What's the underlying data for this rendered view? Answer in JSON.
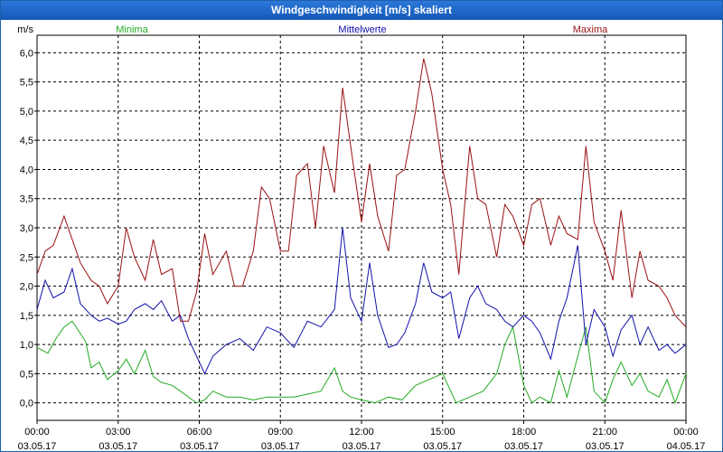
{
  "window": {
    "title": "Windgeschwindigkeit [m/s] skaliert"
  },
  "colors": {
    "min": "#22aa22",
    "mean": "#1111aa",
    "max": "#991111",
    "grid": "#000000"
  },
  "chart_data": {
    "type": "line",
    "title": "Windgeschwindigkeit [m/s] skaliert",
    "ylabel": "m/s",
    "ylim": [
      -0.3,
      6.3
    ],
    "yticks": [
      0,
      0.5,
      1,
      1.5,
      2,
      2.5,
      3,
      3.5,
      4,
      4.5,
      5,
      5.5,
      6
    ],
    "ytick_labels": [
      "0,0",
      "0,5",
      "1,0",
      "1,5",
      "2,0",
      "2,5",
      "3,0",
      "3,5",
      "4,0",
      "4,5",
      "5,0",
      "5,5",
      "6,0"
    ],
    "xlim": [
      0,
      24
    ],
    "xticks": [
      0,
      3,
      6,
      9,
      12,
      15,
      18,
      21,
      24
    ],
    "xtick_time_labels": [
      "00:00",
      "03:00",
      "06:00",
      "09:00",
      "12:00",
      "15:00",
      "18:00",
      "21:00",
      "00:00"
    ],
    "xtick_date_labels": [
      "03.05.17",
      "03.05.17",
      "03.05.17",
      "03.05.17",
      "03.05.17",
      "03.05.17",
      "03.05.17",
      "03.05.17",
      "04.05.17"
    ],
    "series": [
      {
        "name": "Minima",
        "key": "min",
        "x": [
          0,
          0.4,
          0.7,
          1,
          1.3,
          1.8,
          2,
          2.3,
          2.6,
          3,
          3.3,
          3.6,
          4,
          4.3,
          4.6,
          5,
          5.3,
          5.6,
          5.9,
          6.2,
          6.5,
          7,
          7.5,
          8,
          8.5,
          9,
          9.5,
          10,
          10.5,
          11,
          11.3,
          11.6,
          12,
          12.5,
          13,
          13.5,
          14,
          14.5,
          15,
          15.5,
          16,
          16.5,
          17,
          17.3,
          17.6,
          18,
          18.3,
          18.6,
          19,
          19.3,
          19.6,
          20,
          20.3,
          20.6,
          21,
          21.3,
          21.6,
          22,
          22.3,
          22.6,
          23,
          23.3,
          23.6,
          24
        ],
        "values": [
          0.95,
          0.85,
          1.1,
          1.3,
          1.4,
          1.05,
          0.6,
          0.7,
          0.4,
          0.55,
          0.75,
          0.5,
          0.9,
          0.45,
          0.35,
          0.3,
          0.2,
          0.1,
          0.0,
          0.05,
          0.2,
          0.1,
          0.1,
          0.05,
          0.1,
          0.1,
          0.1,
          0.15,
          0.2,
          0.6,
          0.2,
          0.1,
          0.05,
          0.0,
          0.1,
          0.05,
          0.3,
          0.4,
          0.5,
          0.0,
          0.1,
          0.2,
          0.5,
          1.0,
          1.3,
          0.3,
          0.0,
          0.1,
          0.0,
          0.55,
          0.1,
          0.8,
          1.3,
          0.2,
          0.0,
          0.4,
          0.7,
          0.3,
          0.5,
          0.2,
          0.1,
          0.4,
          0.0,
          0.5
        ]
      },
      {
        "name": "Mittelwerte",
        "key": "mean",
        "x": [
          0,
          0.3,
          0.6,
          1,
          1.3,
          1.6,
          2,
          2.3,
          2.6,
          3,
          3.3,
          3.6,
          4,
          4.3,
          4.6,
          5,
          5.3,
          5.6,
          5.9,
          6.2,
          6.5,
          7,
          7.5,
          8,
          8.5,
          9,
          9.5,
          10,
          10.5,
          11,
          11.3,
          11.6,
          12,
          12.3,
          12.6,
          13,
          13.3,
          13.6,
          14,
          14.3,
          14.6,
          15,
          15.3,
          15.6,
          16,
          16.3,
          16.6,
          17,
          17.3,
          17.6,
          18,
          18.3,
          18.6,
          19,
          19.3,
          19.6,
          20,
          20.3,
          20.6,
          21,
          21.3,
          21.6,
          22,
          22.3,
          22.6,
          23,
          23.3,
          23.6,
          24
        ],
        "values": [
          1.6,
          2.1,
          1.8,
          1.9,
          2.3,
          1.7,
          1.5,
          1.4,
          1.45,
          1.35,
          1.4,
          1.6,
          1.7,
          1.6,
          1.75,
          1.4,
          1.5,
          1.1,
          0.8,
          0.5,
          0.8,
          1.0,
          1.1,
          0.9,
          1.3,
          1.2,
          0.95,
          1.4,
          1.3,
          1.6,
          3.0,
          1.8,
          1.4,
          2.4,
          1.5,
          0.95,
          1.0,
          1.2,
          1.7,
          2.4,
          1.9,
          1.8,
          1.9,
          1.1,
          1.8,
          2.0,
          1.7,
          1.6,
          1.4,
          1.3,
          1.5,
          1.4,
          1.2,
          0.75,
          1.4,
          1.8,
          2.7,
          1.0,
          1.6,
          1.3,
          0.8,
          1.25,
          1.5,
          1.0,
          1.3,
          0.9,
          1.0,
          0.85,
          1.0
        ]
      },
      {
        "name": "Maxima",
        "key": "max",
        "x": [
          0,
          0.3,
          0.6,
          1,
          1.3,
          1.6,
          2,
          2.3,
          2.6,
          3,
          3.3,
          3.6,
          4,
          4.3,
          4.6,
          5,
          5.3,
          5.6,
          5.9,
          6.2,
          6.5,
          7,
          7.3,
          7.6,
          8,
          8.3,
          8.6,
          9,
          9.3,
          9.6,
          10,
          10.3,
          10.6,
          11,
          11.3,
          11.6,
          12,
          12.3,
          12.6,
          13,
          13.3,
          13.6,
          14,
          14.3,
          14.6,
          15,
          15.3,
          15.6,
          16,
          16.3,
          16.6,
          17,
          17.3,
          17.6,
          18,
          18.3,
          18.6,
          19,
          19.3,
          19.6,
          20,
          20.3,
          20.6,
          21,
          21.3,
          21.6,
          22,
          22.3,
          22.6,
          23,
          23.3,
          23.6,
          24
        ],
        "values": [
          2.2,
          2.6,
          2.7,
          3.2,
          2.8,
          2.4,
          2.1,
          2.0,
          1.7,
          2.0,
          3.0,
          2.5,
          2.1,
          2.8,
          2.2,
          2.3,
          1.4,
          1.4,
          1.9,
          2.9,
          2.2,
          2.6,
          2.0,
          2.0,
          2.6,
          3.7,
          3.5,
          2.6,
          2.6,
          3.9,
          4.1,
          3.0,
          4.4,
          3.6,
          5.4,
          4.4,
          3.1,
          4.1,
          3.2,
          2.6,
          3.9,
          4.0,
          5.0,
          5.9,
          5.3,
          4.0,
          3.4,
          2.2,
          4.4,
          3.5,
          3.4,
          2.5,
          3.4,
          3.2,
          2.7,
          3.4,
          3.5,
          2.7,
          3.2,
          2.9,
          2.8,
          4.4,
          3.1,
          2.6,
          2.1,
          3.3,
          1.8,
          2.6,
          2.1,
          2.0,
          1.8,
          1.5,
          1.3
        ]
      }
    ]
  }
}
